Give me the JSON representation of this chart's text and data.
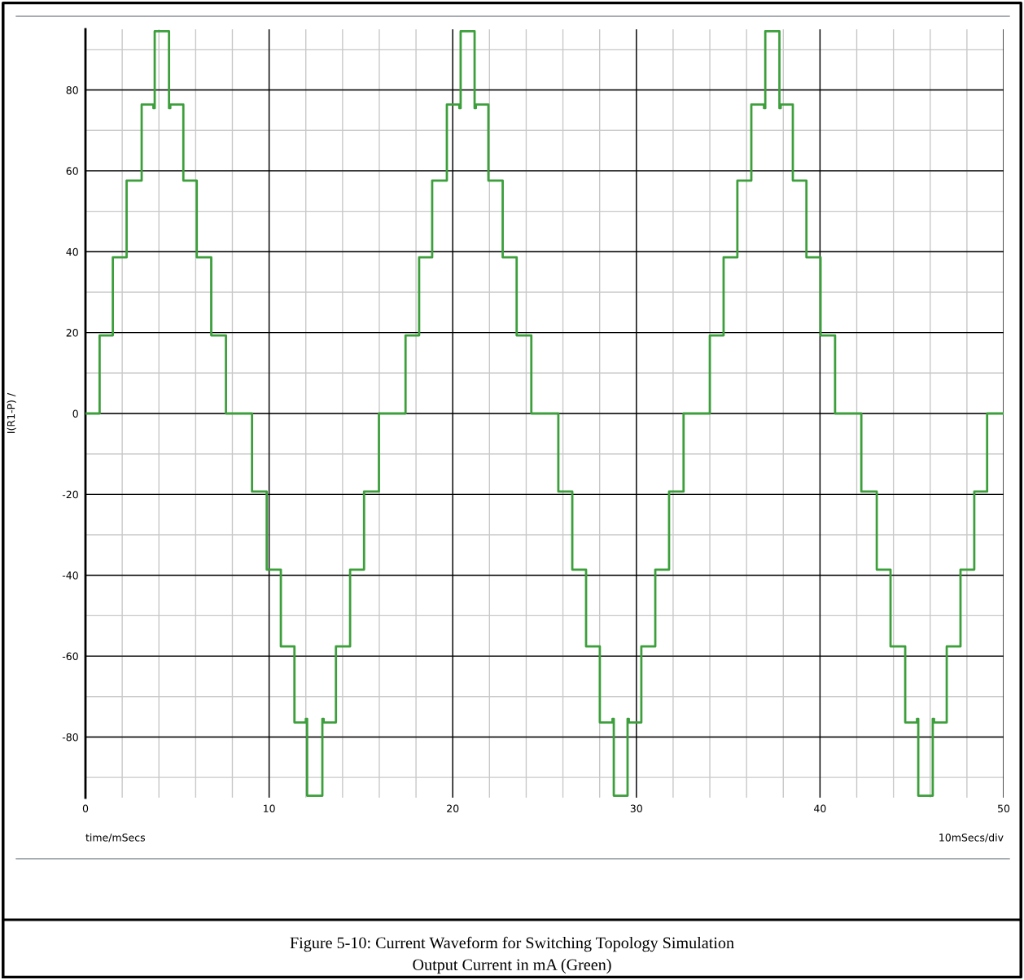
{
  "chart_data": {
    "type": "step",
    "title": "Figure 5-10: Current Waveform for Switching Topology Simulation",
    "subtitle": "Output Current in mA (Green)",
    "ylabel": "I(R1-P) /",
    "annotations": [
      "time/mSecs",
      "10mSecs/div"
    ],
    "x": [
      0,
      0.77,
      1.49,
      2.24,
      3.06,
      3.7,
      3.77,
      4.55,
      4.62,
      5.33,
      6.06,
      6.85,
      7.65,
      9.07,
      9.87,
      10.64,
      11.38,
      12.0,
      12.07,
      12.9,
      12.97,
      13.64,
      14.41,
      15.17,
      15.98,
      17.43,
      18.17,
      18.88,
      19.68,
      20.36,
      20.43,
      21.19,
      21.26,
      21.94,
      22.72,
      23.48,
      24.28,
      25.75,
      26.51,
      27.26,
      28.01,
      28.7,
      28.77,
      29.52,
      29.59,
      30.27,
      31.03,
      31.78,
      32.57,
      34.0,
      34.75,
      35.5,
      36.26,
      36.95,
      37.02,
      37.79,
      37.86,
      38.52,
      39.26,
      40.03,
      40.82,
      42.25,
      43.09,
      43.84,
      44.64,
      45.28,
      45.35,
      46.14,
      46.21,
      46.9,
      47.65,
      48.4,
      49.1,
      50
    ],
    "series": [
      {
        "color": "#3c9f3c",
        "values": [
          0,
          19.3,
          38.6,
          57.6,
          76.4,
          75.5,
          94.5,
          75.5,
          76.4,
          57.6,
          38.6,
          19.3,
          0,
          -19.3,
          -38.6,
          -57.6,
          -76.4,
          -75.5,
          -94.5,
          -75.5,
          -76.4,
          -57.6,
          -38.6,
          -19.3,
          0,
          19.3,
          38.6,
          57.6,
          76.4,
          75.5,
          94.5,
          75.5,
          76.4,
          57.6,
          38.6,
          19.3,
          0,
          -19.3,
          -38.6,
          -57.6,
          -76.4,
          -75.5,
          -94.5,
          -75.5,
          -76.4,
          -57.6,
          -38.6,
          -19.3,
          0,
          19.3,
          38.6,
          57.6,
          76.4,
          75.5,
          94.5,
          75.5,
          76.4,
          57.6,
          38.6,
          19.3,
          0,
          -19.3,
          -38.6,
          -57.6,
          -76.4,
          -75.5,
          -94.5,
          -75.5,
          -76.4,
          -57.6,
          -38.6,
          -19.3,
          0,
          0
        ]
      }
    ],
    "xlim": [
      0,
      50
    ],
    "xticks": [
      0,
      10,
      20,
      30,
      40,
      50
    ],
    "ylim": [
      -95,
      95
    ],
    "yticks": [
      -80,
      -60,
      -40,
      -20,
      0,
      20,
      40,
      60,
      80
    ],
    "grid": true,
    "legend": false,
    "line_style": "solid",
    "marker": "none"
  }
}
